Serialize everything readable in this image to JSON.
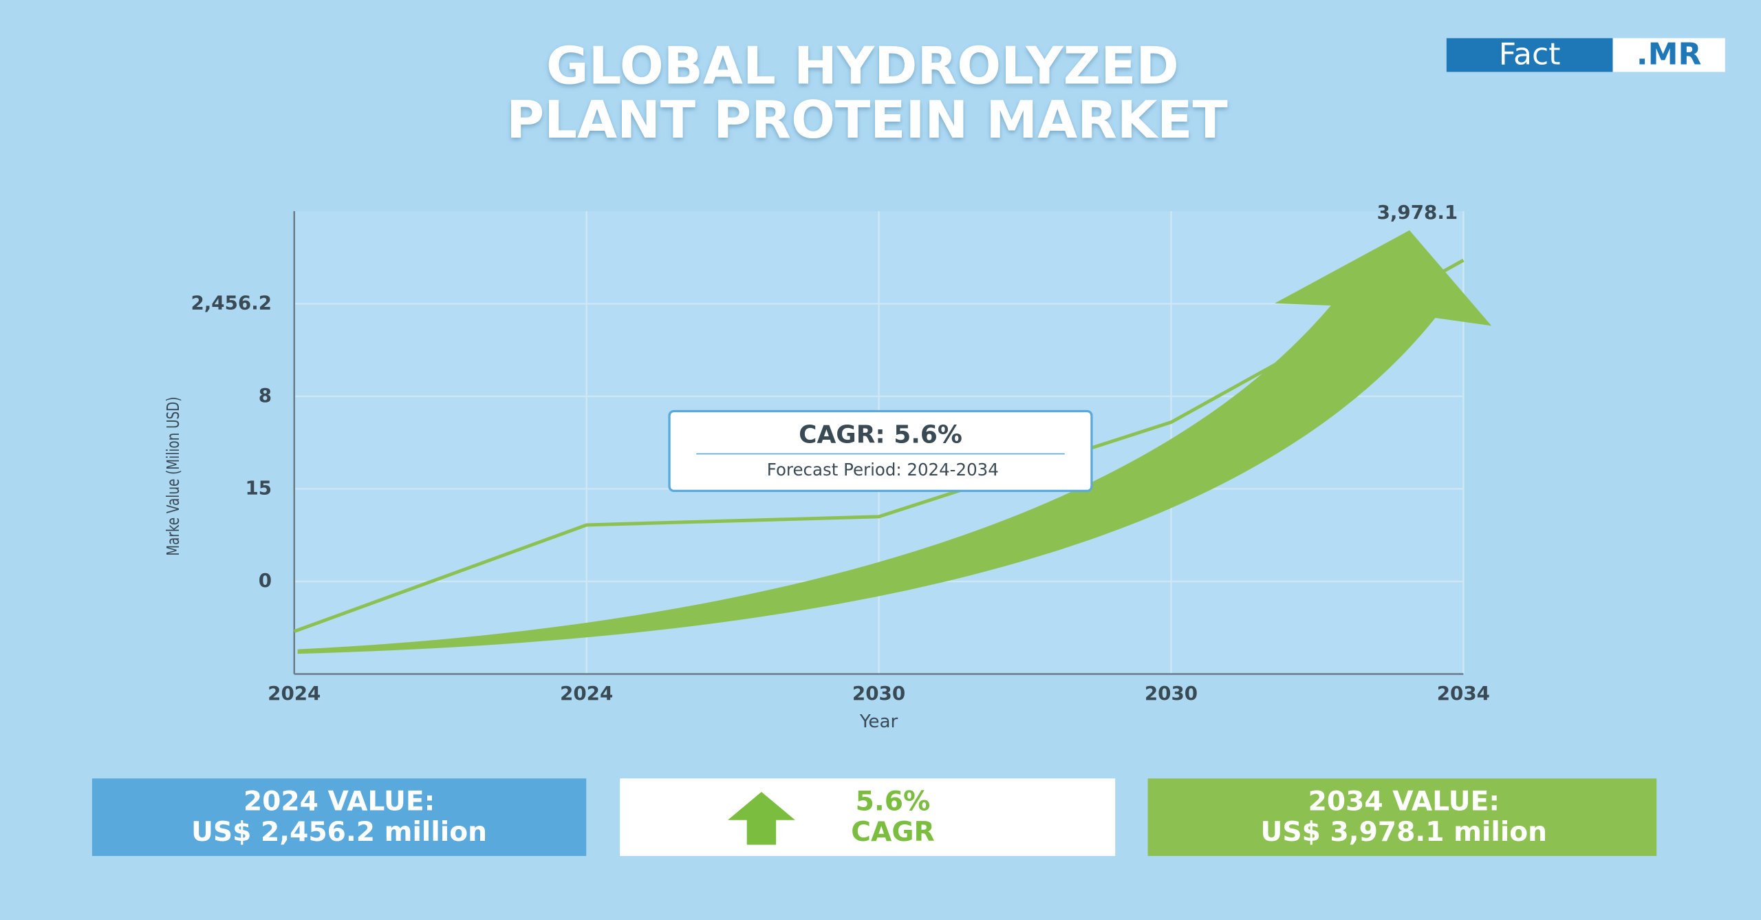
{
  "header": {
    "title_lines": [
      "GLOBAL HYDROLYZED",
      "PLANT PROTEIN MARKET"
    ],
    "logo": [
      "Fact",
      ".MR"
    ]
  },
  "chart_data": {
    "type": "line",
    "categories": [
      "2024",
      "2024",
      "2030",
      "2030",
      "2034"
    ],
    "series": [
      {
        "name": "Market Value",
        "color": "#8cc152",
        "values": [
          -0.54,
          0.61,
          0.7,
          1.72,
          3.47
        ]
      }
    ],
    "ylim": [
      -1,
      4
    ],
    "yticks": [
      {
        "value": 0,
        "label": "0"
      },
      {
        "value": 1,
        "label": "15"
      },
      {
        "value": 2,
        "label": "8"
      },
      {
        "value": 3,
        "label": "2,456.2"
      }
    ],
    "y_label": "Marke Value (Milion USD)",
    "x_label": "Year",
    "grid": true,
    "end_label": "3,978.1",
    "annotation": {
      "title": "CAGR: 5.6%",
      "subtitle": "Forecast Period: 2024-2034"
    }
  },
  "cards": [
    {
      "lines": [
        "2024 VALUE:",
        "US$ 2,456.2 million"
      ]
    },
    {
      "lines": [
        "5.6%",
        "CAGR"
      ]
    },
    {
      "lines": [
        "2034 VALUE:",
        "US$ 3,978.1 milion"
      ]
    }
  ]
}
